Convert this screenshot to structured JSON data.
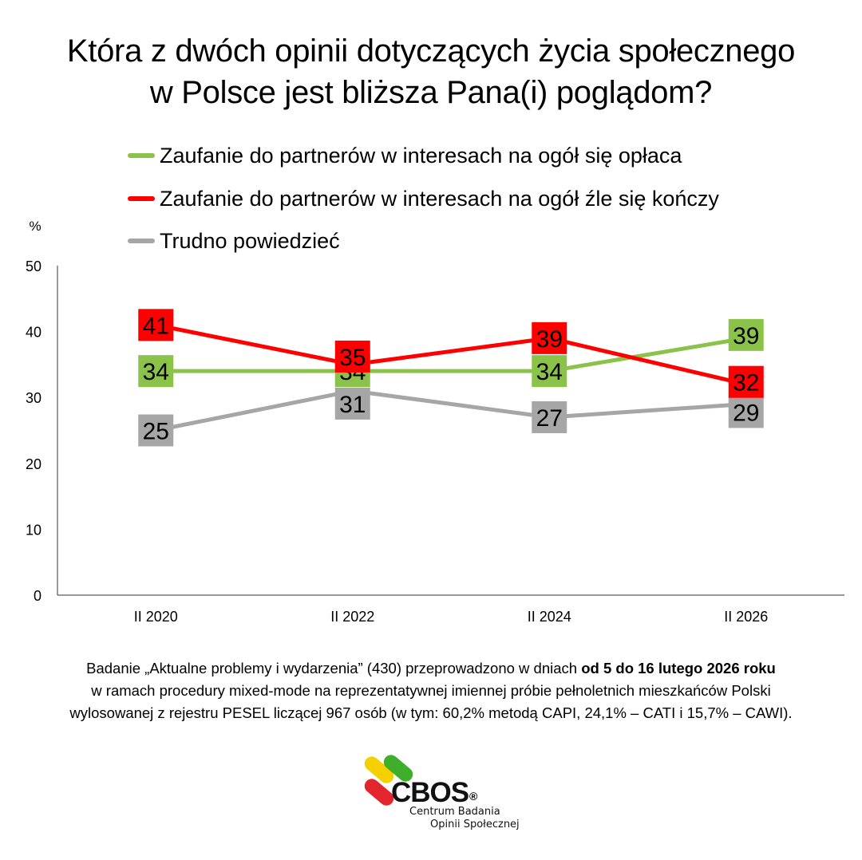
{
  "title": {
    "line1": "Która z dwóch opinii dotyczących życia społecznego",
    "line2": "w Polsce jest bliższa Pana(i) poglądom?"
  },
  "colors": {
    "green": "#8bc34a",
    "red": "#ff0000",
    "gray": "#a6a6a6"
  },
  "chart_data": {
    "type": "line",
    "ylabel": "%",
    "ylim": [
      0,
      50
    ],
    "yticks": [
      "0",
      "10",
      "20",
      "30",
      "40",
      "50"
    ],
    "categories": [
      "II 2020",
      "II 2022",
      "II 2024",
      "II 2026"
    ],
    "grid": false,
    "legend_position": "top",
    "series": [
      {
        "name": "Zaufanie do partnerów w interesach na ogół się opłaca",
        "color": "#8bc34a",
        "values": [
          34,
          34,
          34,
          39
        ]
      },
      {
        "name": "Zaufanie do partnerów w interesach na ogół źle się kończy",
        "color": "#ff0000",
        "values": [
          41,
          35,
          39,
          32
        ]
      },
      {
        "name": "Trudno powiedzieć",
        "color": "#a6a6a6",
        "values": [
          25,
          31,
          27,
          29
        ]
      }
    ]
  },
  "footnote": {
    "part1": "Badanie „Aktualne problemy i wydarzenia” (430) przeprowadzono w dniach ",
    "bold": "od 5 do 16 lutego 2026 roku",
    "line2": "w ramach procedury mixed-mode na reprezentatywnej imiennej próbie pełnoletnich mieszkańców Polski",
    "line3": "wylosowanej z rejestru PESEL liczącej 967 osób (w tym: 60,2% metodą CAPI, 24,1% – CATI i 15,7% – CAWI)."
  },
  "logo": {
    "name": "CBOS",
    "reg": "®",
    "sub1": "Centrum Badania",
    "sub2": "Opinii Społecznej"
  }
}
